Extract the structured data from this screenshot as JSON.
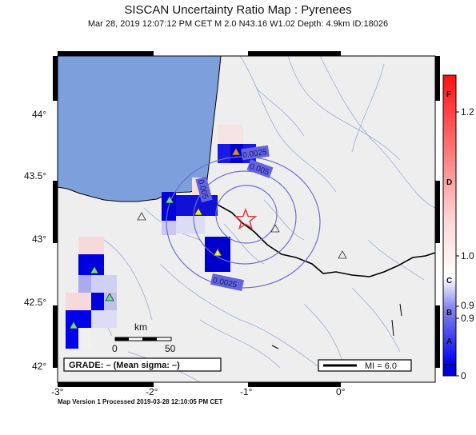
{
  "header": {
    "title": "SISCAN Uncertainty Ratio Map : Pyrenees",
    "subtitle": "Mar 28, 2019 12:07:12 PM CET   M 2.0   N43.16 W1.02   Depth: 4.9km   ID:18026"
  },
  "axes": {
    "lat_ticks": [
      {
        "label": "44°",
        "value": 44.0
      },
      {
        "label": "43.5°",
        "value": 43.5
      },
      {
        "label": "43°",
        "value": 43.0
      },
      {
        "label": "42.5°",
        "value": 42.5
      },
      {
        "label": "42°",
        "value": 42.0
      }
    ],
    "lon_ticks": [
      {
        "label": "-3°",
        "value": -3.0
      },
      {
        "label": "-2°",
        "value": -2.0
      },
      {
        "label": "-1°",
        "value": -1.0
      },
      {
        "label": "0°",
        "value": 0.0
      }
    ]
  },
  "contours": [
    {
      "label": "0.0025"
    },
    {
      "label": "0.005"
    },
    {
      "label": "0.005"
    },
    {
      "label": "0.0025"
    }
  ],
  "scalebar": {
    "title": "km",
    "ticks": [
      "0",
      "50"
    ]
  },
  "grade_box": {
    "text": "GRADE: – (Mean sigma: –)"
  },
  "mi_box": {
    "text": "MI = 6.0"
  },
  "colorbar": {
    "letters": [
      "F",
      "D",
      "C",
      "B",
      "A"
    ],
    "values": [
      "1.2",
      "1.0",
      "0.9",
      "0.9",
      "0"
    ]
  },
  "footer": {
    "text": "Map Version 1 Processed 2019-03-28 12:10:05 PM CET"
  },
  "colors": {
    "sea": "#7da0dc",
    "land": "#eeeeee",
    "border": "#000000",
    "rivers": "#9aaed6",
    "epicenter": "#e03030",
    "station": "#66dd99"
  }
}
